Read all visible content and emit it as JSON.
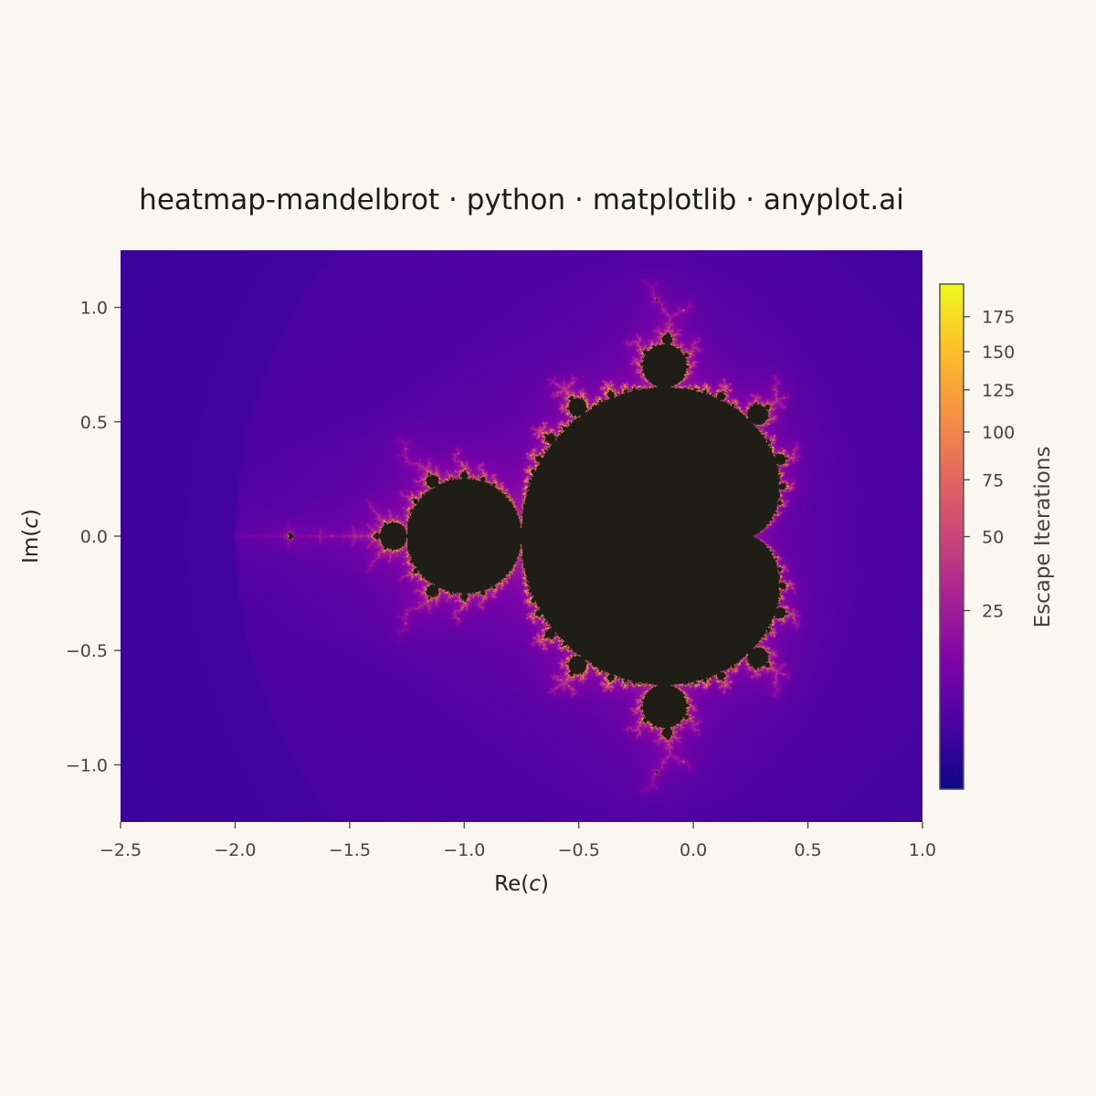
{
  "chart_data": {
    "type": "heatmap",
    "title": "heatmap-mandelbrot · python · matplotlib · anyplot.ai",
    "xlabel": "Re(c)",
    "ylabel": "Im(c)",
    "xlim": [
      -2.5,
      1.0
    ],
    "ylim": [
      -1.25,
      1.25
    ],
    "x_ticks": [
      -2.5,
      -2.0,
      -1.5,
      -1.0,
      -0.5,
      0.0,
      0.5,
      1.0
    ],
    "x_tick_labels": [
      "−2.5",
      "−2.0",
      "−1.5",
      "−1.0",
      "−0.5",
      "0.0",
      "0.5",
      "1.0"
    ],
    "y_ticks": [
      1.0,
      0.5,
      0.0,
      -0.5,
      -1.0
    ],
    "y_tick_labels": [
      "1.0",
      "0.5",
      "0.0",
      "−0.5",
      "−1.0"
    ],
    "function": "escape iterations of z → z² + c",
    "max_iterations": 200,
    "colormap": "plasma",
    "inside_set_color": "#1E1E17",
    "grid": false,
    "colorbar": {
      "label": "Escape Iterations",
      "scale": "sqrt",
      "range": [
        0,
        200
      ],
      "ticks": [
        25,
        50,
        75,
        100,
        125,
        150,
        175
      ],
      "tick_labels": [
        "25",
        "50",
        "75",
        "100",
        "125",
        "150",
        "175"
      ],
      "position": "right"
    }
  }
}
